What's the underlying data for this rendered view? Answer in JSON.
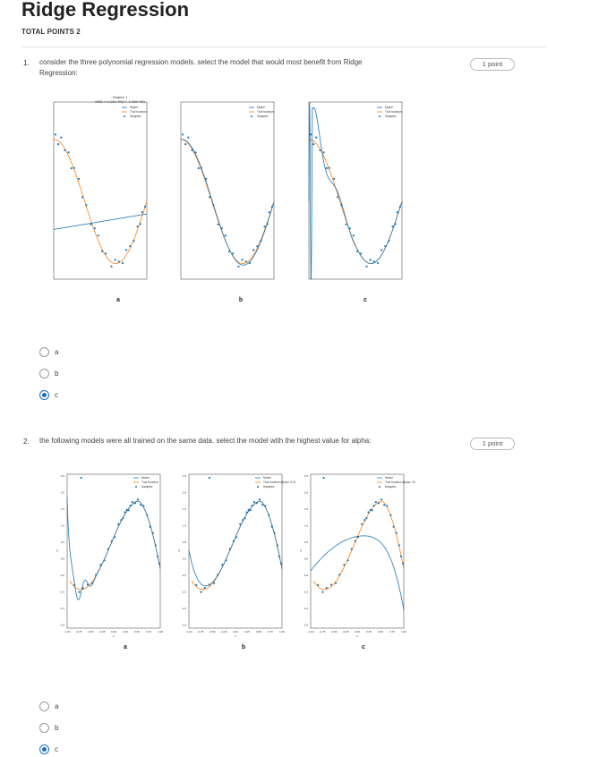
{
  "quiz": {
    "title": "Ridge Regression",
    "total_points": "TOTAL POINTS 2"
  },
  "questions": [
    {
      "number": "1.",
      "text_line1": "consider the three polynomial regression models. select the model that would most benefit from Ridge",
      "text_line2": "Regression:",
      "points": "1 point",
      "plots": [
        {
          "caption": "a",
          "title1": "Degree 1",
          "title2": "MSE = 1.12e+00(+/- 1.19e+00)",
          "legend": [
            "Model",
            "True function",
            "Samples"
          ]
        },
        {
          "caption": "b",
          "legend": [
            "Model",
            "True function",
            "Samples"
          ]
        },
        {
          "caption": "c",
          "legend": [
            "Model",
            "True function",
            "Samples"
          ]
        }
      ],
      "options": [
        {
          "label": "a",
          "selected": false
        },
        {
          "label": "b",
          "selected": false
        },
        {
          "label": "c",
          "selected": true
        }
      ]
    },
    {
      "number": "2.",
      "text_line1": "the following models were all trained on the same data. select the model with the highest value for alpha:",
      "points": "1 point",
      "plots": [
        {
          "caption": "a",
          "legend": [
            "Model",
            "True function",
            "Samples"
          ]
        },
        {
          "caption": "b",
          "legend": [
            "Model",
            "True function Alpha= 0.01",
            "Samples"
          ]
        },
        {
          "caption": "c",
          "legend": [
            "Model",
            "True function Alpha= 10",
            "Samples"
          ]
        }
      ],
      "y_ticks": [
        "2.5",
        "2.0",
        "1.5",
        "1.0",
        "0.5",
        "0.0",
        "-0.5",
        "-1.0",
        "-1.5",
        "-2.0"
      ],
      "x_ticks": [
        "-1.00",
        "-0.75",
        "-0.50",
        "-0.25",
        "0.00",
        "0.25",
        "0.50",
        "0.75",
        "1.00"
      ],
      "y_label": "y",
      "x_label": "x",
      "options": [
        {
          "label": "a",
          "selected": false
        },
        {
          "label": "b",
          "selected": false
        },
        {
          "label": "c",
          "selected": true
        }
      ]
    }
  ],
  "colors": {
    "model": "#1f77b4",
    "true_function": "#ff7f0e",
    "samples": "#1f77b4",
    "selected": "#1f6fbf"
  }
}
